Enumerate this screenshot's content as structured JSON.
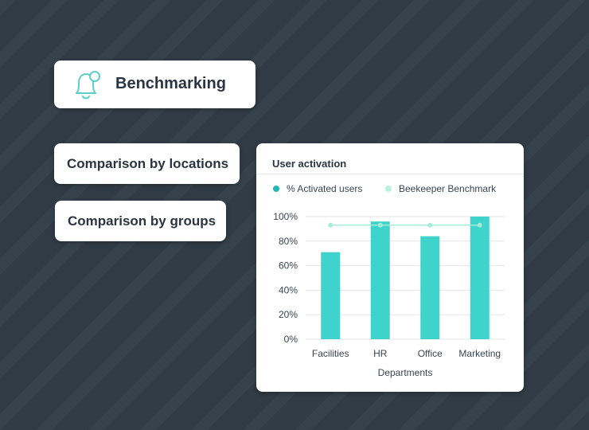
{
  "header": {
    "title": "Benchmarking",
    "icon": "bell-icon",
    "icon_color": "#5ccfc8"
  },
  "nav": [
    {
      "label": "Comparison by locations"
    },
    {
      "label": "Comparison by groups"
    }
  ],
  "colors": {
    "bar": "#3fd3cc",
    "benchmark": "#a6ecd4",
    "grid": "#e3e6e9"
  },
  "chart_data": {
    "type": "bar",
    "title": "User activation",
    "xlabel": "Departments",
    "ylabel": "",
    "categories": [
      "Facilities",
      "HR",
      "Office",
      "Marketing"
    ],
    "series": [
      {
        "name": "% Activated users",
        "type": "bar",
        "color": "#3fd3cc",
        "values": [
          71,
          96,
          84,
          100
        ]
      },
      {
        "name": "Beekeeper Benchmark",
        "type": "line",
        "color": "#a6ecd4",
        "values": [
          93,
          93,
          93,
          93
        ]
      }
    ],
    "yticks": [
      "0%",
      "20%",
      "40%",
      "60%",
      "80%",
      "100%"
    ],
    "ylim": [
      0,
      100
    ],
    "grid": true,
    "legend": "top-left"
  }
}
